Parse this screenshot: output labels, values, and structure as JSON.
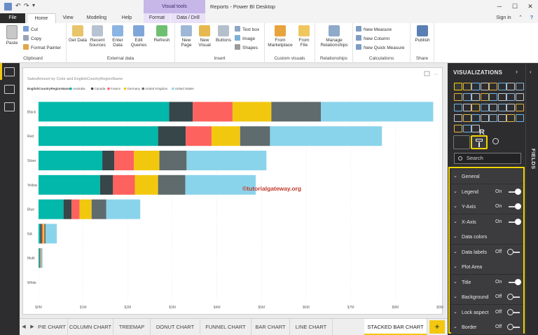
{
  "titlebar": {
    "title": "Reports - Power BI Desktop",
    "context_group": "Visual tools",
    "minimize": "─",
    "maximize": "☐",
    "close": "✕"
  },
  "tabs": {
    "file": "File",
    "home": "Home",
    "view": "View",
    "modeling": "Modeling",
    "help": "Help",
    "format": "Format",
    "data_drill": "Data / Drill",
    "sign_in": "Sign in"
  },
  "ribbon": {
    "clipboard": {
      "paste": "Paste",
      "cut": "Cut",
      "copy": "Copy",
      "format_painter": "Format Painter",
      "label": "Clipboard"
    },
    "external_data": {
      "get_data": "Get Data",
      "recent_sources": "Recent Sources",
      "enter_data": "Enter Data",
      "edit_queries": "Edit Queries",
      "refresh": "Refresh",
      "label": "External data"
    },
    "insert": {
      "new_page": "New Page",
      "new_visual": "New Visual",
      "buttons": "Buttons",
      "text_box": "Text box",
      "image": "Image",
      "shapes": "Shapes",
      "label": "Insert"
    },
    "custom_visuals": {
      "from_marketplace": "From Marketplace",
      "from_file": "From File",
      "label": "Custom visuals"
    },
    "relationships": {
      "manage": "Manage Relationships",
      "label": "Relationships"
    },
    "calculations": {
      "new_measure": "New Measure",
      "new_column": "New Column",
      "new_quick_measure": "New Quick Measure",
      "label": "Calculations"
    },
    "share": {
      "publish": "Publish",
      "label": "Share"
    }
  },
  "chart_data": {
    "type": "bar",
    "stacked": true,
    "orientation": "horizontal",
    "title": "SalesAmount by Color and EnglishCountryRegionName",
    "legend_title": "EnglishCountryRegionName",
    "legend_position": "top-left",
    "categories": [
      "Black",
      "Red",
      "Silver",
      "Yellow",
      "Blue",
      "NA",
      "Multi",
      "White"
    ],
    "series": [
      {
        "name": "Australia",
        "color": "#01B8AA",
        "values": [
          2.93,
          2.68,
          1.43,
          1.38,
          0.56,
          0.04,
          0.02,
          0.0
        ]
      },
      {
        "name": "Canada",
        "color": "#374649",
        "values": [
          0.53,
          0.62,
          0.27,
          0.29,
          0.18,
          0.03,
          0.01,
          0.0
        ]
      },
      {
        "name": "France",
        "color": "#FD625E",
        "values": [
          0.89,
          0.58,
          0.44,
          0.49,
          0.18,
          0.03,
          0.01,
          0.0
        ]
      },
      {
        "name": "Germany",
        "color": "#F2C80F",
        "values": [
          0.87,
          0.64,
          0.57,
          0.52,
          0.27,
          0.03,
          0.01,
          0.0
        ]
      },
      {
        "name": "United Kingdom",
        "color": "#5F6B6D",
        "values": [
          1.11,
          0.67,
          0.61,
          0.61,
          0.33,
          0.03,
          0.01,
          0.0
        ]
      },
      {
        "name": "United States",
        "color": "#8AD4EB",
        "values": [
          2.52,
          2.51,
          1.79,
          1.58,
          0.76,
          0.25,
          0.03,
          0.0
        ]
      }
    ],
    "x_ticks": [
      "$0M",
      "$1M",
      "$2M",
      "$3M",
      "$4M",
      "$5M",
      "$6M",
      "$7M",
      "$8M",
      "$9M"
    ],
    "xlim": [
      0,
      9
    ],
    "grid": true,
    "watermark": "©tutorialgateway.org"
  },
  "page_tabs": [
    "PIE CHART",
    "COLUMN CHART",
    "TREEMAP",
    "DONUT CHART",
    "FUNNEL CHART",
    "BAR CHART",
    "LINE CHART",
    "STACKED BAR CHART"
  ],
  "active_page": "STACKED BAR CHART",
  "add_page": "+",
  "visualizations": {
    "header": "VISUALIZATIONS",
    "search_placeholder": "Search",
    "r_icon": "R",
    "format_sections": [
      {
        "label": "General"
      },
      {
        "label": "Legend",
        "state": "On"
      },
      {
        "label": "Y-Axis",
        "state": "On"
      },
      {
        "label": "X-Axis",
        "state": "On"
      },
      {
        "label": "Data colors"
      },
      {
        "label": "Data labels",
        "state": "Off"
      },
      {
        "label": "Plot Area"
      },
      {
        "label": "Title",
        "state": "On"
      },
      {
        "label": "Background",
        "state": "Off"
      },
      {
        "label": "Lock aspect",
        "state": "Off"
      },
      {
        "label": "Border",
        "state": "Off"
      }
    ]
  },
  "fields": {
    "label": "FIELDS"
  },
  "colors": {
    "accent": "#F2C811",
    "pane": "#2D2D30",
    "row": "#3C3C3F"
  }
}
